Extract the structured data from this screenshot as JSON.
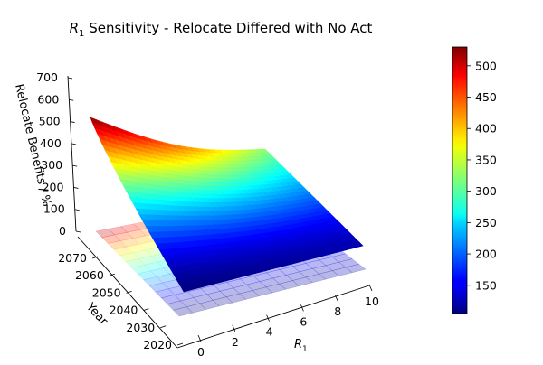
{
  "chart_data": {
    "type": "surface",
    "title_sym": "R",
    "title_sub": "1",
    "title_rest": " Sensitivity - Relocate Differed with No Act",
    "zlabel": "Relocate Benefits / %",
    "ylabel": "Year",
    "xlabel_sym": "R",
    "xlabel_sub": "1",
    "x_ticks": [
      "0",
      "2",
      "4",
      "6",
      "8",
      "10"
    ],
    "y_ticks": [
      "2020",
      "2030",
      "2040",
      "2050",
      "2060",
      "2070"
    ],
    "z_ticks": [
      "0",
      "100",
      "200",
      "300",
      "400",
      "500",
      "600",
      "700"
    ],
    "colorbar_ticks": [
      "150",
      "200",
      "250",
      "300",
      "350",
      "400",
      "450",
      "500"
    ],
    "colormap": "jet",
    "x_range": [
      0.5,
      10
    ],
    "y_range": [
      2020,
      2070
    ],
    "z_range": [
      0,
      700
    ],
    "color_range": [
      105,
      530
    ],
    "corner_values": [
      {
        "x": 0.5,
        "year": 2020,
        "z": 105
      },
      {
        "x": 10,
        "year": 2020,
        "z": 125
      },
      {
        "x": 0.5,
        "year": 2070,
        "z": 528
      },
      {
        "x": 10,
        "year": 2070,
        "z": 325
      }
    ],
    "contour_projection": true
  }
}
